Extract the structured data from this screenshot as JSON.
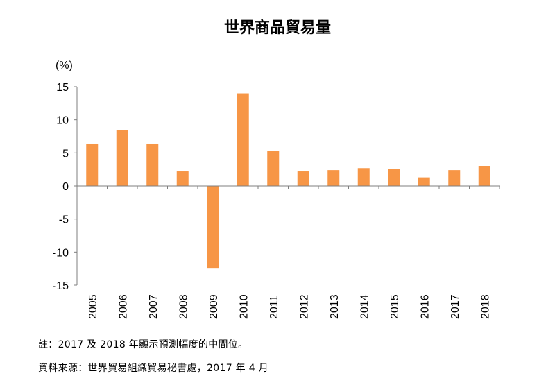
{
  "chart_data": {
    "type": "bar",
    "title": "世界商品貿易量",
    "ylabel": "(%)",
    "xlabel": "",
    "ylim": [
      -15,
      15
    ],
    "yticks": [
      15,
      10,
      5,
      0,
      -5,
      -10,
      -15
    ],
    "categories": [
      "2005",
      "2006",
      "2007",
      "2008",
      "2009",
      "2010",
      "2011",
      "2012",
      "2013",
      "2014",
      "2015",
      "2016",
      "2017",
      "2018"
    ],
    "values": [
      6.4,
      8.4,
      6.4,
      2.2,
      -12.5,
      14.0,
      5.3,
      2.2,
      2.4,
      2.7,
      2.6,
      1.3,
      2.4,
      3.0
    ],
    "bar_color": "#f79646",
    "grid": false,
    "legend": "none"
  },
  "notes": {
    "note": "註：2017 及 2018 年顯示預測幅度的中間位。",
    "source": "資料來源：世界貿易組織貿易秘書處，2017 年 4 月"
  }
}
